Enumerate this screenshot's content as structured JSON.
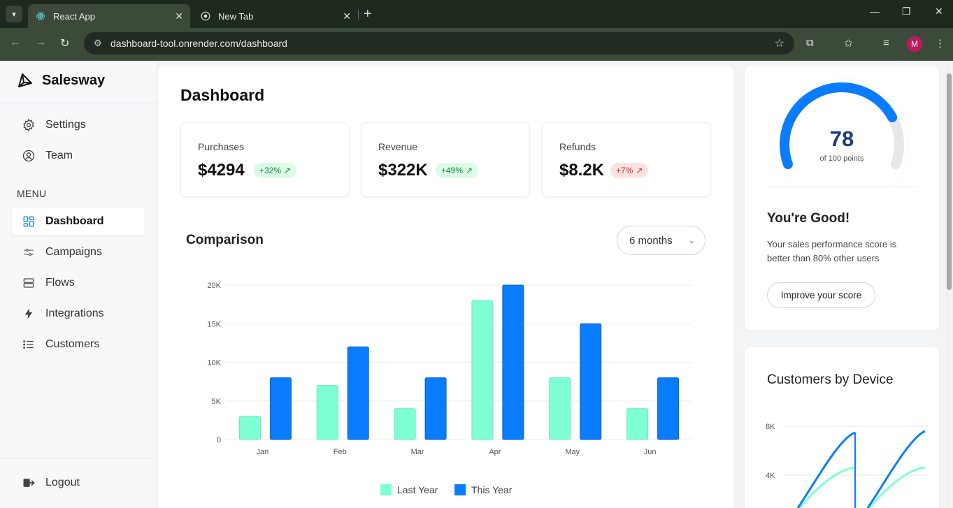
{
  "browser": {
    "tabs": [
      {
        "title": "React App",
        "active": true
      },
      {
        "title": "New Tab",
        "active": false
      }
    ],
    "url": "dashboard-tool.onrender.com/dashboard",
    "profile_initial": "M"
  },
  "sidebar": {
    "brand": "Salesway",
    "top_items": [
      {
        "label": "Settings",
        "icon": "gear-icon"
      },
      {
        "label": "Team",
        "icon": "user-circle-icon"
      }
    ],
    "menu_label": "MENU",
    "menu_items": [
      {
        "label": "Dashboard",
        "icon": "grid-icon",
        "active": true
      },
      {
        "label": "Campaigns",
        "icon": "sliders-icon"
      },
      {
        "label": "Flows",
        "icon": "layers-icon"
      },
      {
        "label": "Integrations",
        "icon": "bolt-icon"
      },
      {
        "label": "Customers",
        "icon": "list-icon"
      }
    ],
    "logout": "Logout"
  },
  "main": {
    "title": "Dashboard",
    "stats": [
      {
        "label": "Purchases",
        "value": "$4294",
        "change": "+32%",
        "trend": "up"
      },
      {
        "label": "Revenue",
        "value": "$322K",
        "change": "+49%",
        "trend": "up"
      },
      {
        "label": "Refunds",
        "value": "$8.2K",
        "change": "+7%",
        "trend": "down"
      }
    ],
    "comparison_title": "Comparison",
    "range": "6 months"
  },
  "chart_data": {
    "type": "bar",
    "categories": [
      "Jan",
      "Feb",
      "Mar",
      "Apr",
      "May",
      "Jun"
    ],
    "series": [
      {
        "name": "Last Year",
        "values": [
          3000,
          7000,
          4000,
          18000,
          8000,
          4000
        ],
        "color": "#7fffd4"
      },
      {
        "name": "This Year",
        "values": [
          8000,
          12000,
          8000,
          20000,
          15000,
          8000
        ],
        "color": "#0a7cff"
      }
    ],
    "yticks": [
      "0",
      "5K",
      "10K",
      "15K",
      "20K"
    ],
    "ylim": [
      0,
      20000
    ],
    "grid": true,
    "legend": "bottom"
  },
  "score": {
    "value": "78",
    "sub": "of 100 points",
    "fraction": 0.78,
    "heading": "You're Good!",
    "text": "Your sales performance score is better than 80% other users",
    "button": "Improve your score"
  },
  "device": {
    "title": "Customers by Device",
    "yticks": [
      "8K",
      "4K"
    ]
  },
  "colors": {
    "accent": "#0a7cff",
    "mint": "#7fffd4",
    "navy": "#1e3a8a"
  }
}
